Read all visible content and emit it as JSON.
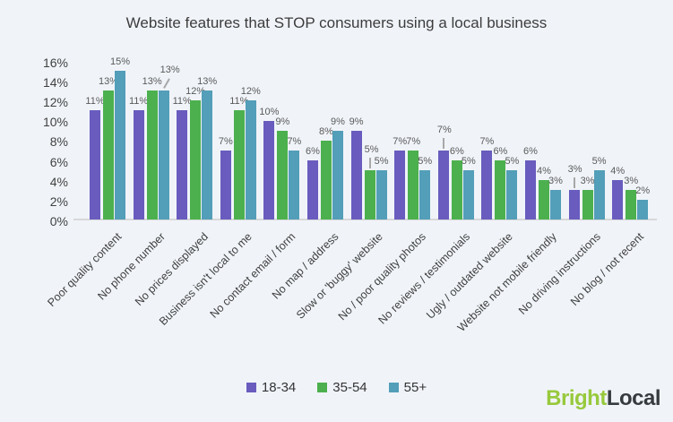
{
  "chart_data": {
    "type": "bar",
    "title": "Website features that STOP consumers using a local business",
    "categories": [
      "Poor quality content",
      "No phone number",
      "No prices displayed",
      "Business isn't local to me",
      "No contact email / form",
      "No map / address",
      "Slow or 'buggy' website",
      "No / poor quality photos",
      "No reviews / testimonials",
      "Ugly / outdated website",
      "Website not mobile friendly",
      "No driving instructions",
      "No blog / not recent"
    ],
    "series": [
      {
        "name": "18-34",
        "color": "#695cbe",
        "values": [
          11,
          11,
          11,
          7,
          10,
          6,
          9,
          7,
          7,
          7,
          6,
          3,
          4
        ]
      },
      {
        "name": "35-54",
        "color": "#4cb04e",
        "values": [
          13,
          13,
          12,
          11,
          9,
          8,
          5,
          7,
          6,
          6,
          4,
          3,
          3
        ]
      },
      {
        "name": "55+",
        "color": "#539eb8",
        "values": [
          15,
          13,
          13,
          12,
          7,
          9,
          5,
          5,
          5,
          5,
          3,
          5,
          2
        ]
      }
    ],
    "ylim": [
      0,
      16
    ],
    "ytick_labels": [
      "16%",
      "14%",
      "12%",
      "10%",
      "8%",
      "6%",
      "4%",
      "2%",
      "0%"
    ],
    "value_suffix": "%",
    "legend_position": "bottom",
    "grid": false
  },
  "logo": {
    "bright": "Bright",
    "local": "Local"
  },
  "colors": {
    "background": "#f0f4f9",
    "axis_line": "#d8d8d8",
    "value_label": "#595959",
    "tick_label": "#404040",
    "title_text": "#3c3c3c",
    "leader_line": "#a8a8a8",
    "legend_text": "#333333",
    "logo_bright": "#98c93c",
    "logo_local": "#363b3f"
  }
}
